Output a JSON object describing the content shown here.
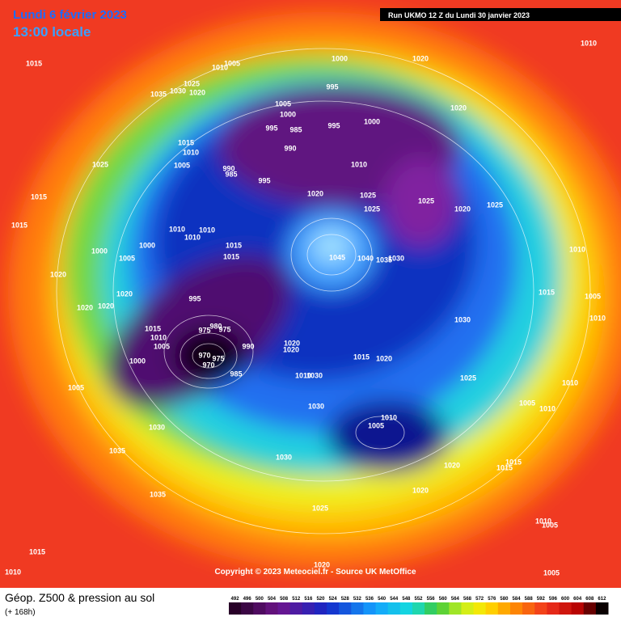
{
  "header": {
    "date": "Lundi 6 février 2023",
    "time": "13:00 locale",
    "run": "Run UKMO 12 Z du Lundi 30 janvier 2023"
  },
  "copyright": "Copyright © 2023 Meteociel.fr - Source UK MetOffice",
  "legend": {
    "title": "Géop. Z500 & pression au sol",
    "subtitle": "(+ 168h)",
    "scale": [
      492,
      496,
      500,
      504,
      508,
      512,
      516,
      520,
      524,
      528,
      532,
      536,
      540,
      544,
      548,
      552,
      556,
      560,
      564,
      568,
      572,
      576,
      580,
      584,
      588,
      592,
      596,
      600,
      604,
      608,
      612
    ]
  },
  "pressure_labels": [
    "1015",
    "1005",
    "1010",
    "1000",
    "995",
    "1020",
    "1010",
    "1035",
    "1025",
    "1030",
    "1020",
    "1005",
    "1000",
    "995",
    "985",
    "995",
    "1000",
    "1020",
    "1015",
    "990",
    "1010",
    "1025",
    "1005",
    "990",
    "985",
    "1010",
    "995",
    "1020",
    "1025",
    "1025",
    "1015",
    "1025",
    "1020",
    "1025",
    "1015",
    "1010",
    "1010",
    "1010",
    "1000",
    "1015",
    "1000",
    "1005",
    "1015",
    "1045",
    "1040",
    "1035",
    "1030",
    "1010",
    "1020",
    "1020",
    "1015",
    "1005",
    "995",
    "1020",
    "1020",
    "1030",
    "1010",
    "1015",
    "980",
    "975",
    "975",
    "1010",
    "1005",
    "990",
    "1020",
    "1020",
    "970",
    "975",
    "970",
    "1000",
    "1015",
    "1020",
    "985",
    "1010",
    "1030",
    "1025",
    "1010",
    "1005",
    "1005",
    "1010",
    "1030",
    "1010",
    "1005",
    "1030",
    "1035",
    "1030",
    "1020",
    "1015",
    "1015",
    "1035",
    "1020",
    "1025",
    "1010",
    "1005",
    "1015",
    "1010",
    "1020",
    "1005"
  ]
}
